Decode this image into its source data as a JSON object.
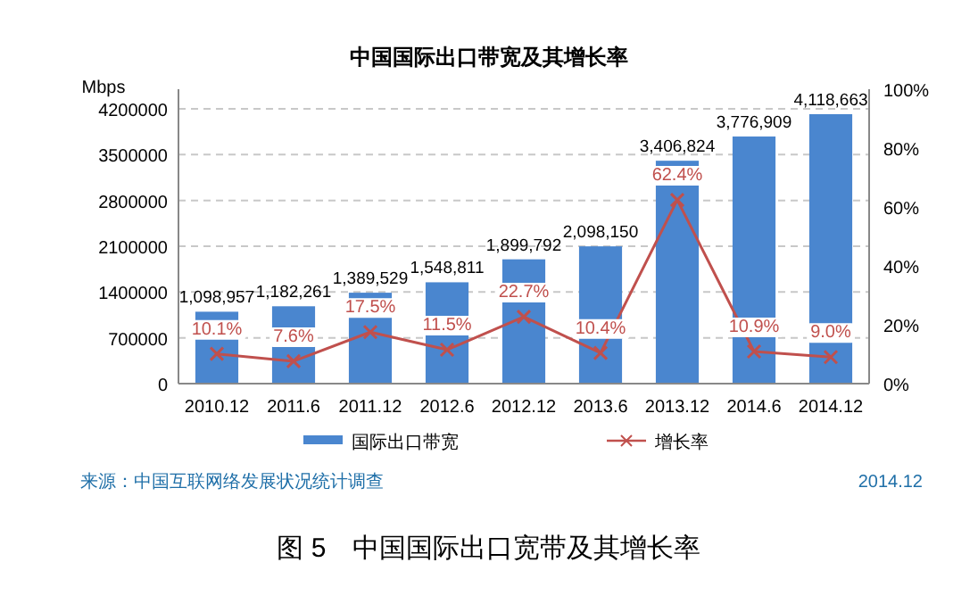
{
  "chart_data": {
    "type": "bar",
    "title": "中国国际出口带宽及其增长率",
    "ylabel": "Mbps",
    "categories": [
      "2010.12",
      "2011.6",
      "2011.12",
      "2012.6",
      "2012.12",
      "2013.6",
      "2013.12",
      "2014.6",
      "2014.12"
    ],
    "series": [
      {
        "name": "国际出口带宽",
        "type": "bar",
        "color": "#4a86cf",
        "values": [
          1098957,
          1182261,
          1389529,
          1548811,
          1899792,
          2098150,
          3406824,
          3776909,
          4118663
        ],
        "value_labels": [
          "1,098,957",
          "1,182,261",
          "1,389,529",
          "1,548,811",
          "1,899,792",
          "2,098,150",
          "3,406,824",
          "3,776,909",
          "4,118,663"
        ]
      },
      {
        "name": "增长率",
        "type": "line",
        "axis": "y2",
        "color": "#c0504d",
        "marker": "cross",
        "values": [
          10.1,
          7.6,
          17.5,
          11.5,
          22.7,
          10.4,
          62.4,
          10.9,
          9.0
        ],
        "value_labels": [
          "10.1%",
          "7.6%",
          "17.5%",
          "11.5%",
          "22.7%",
          "10.4%",
          "62.4%",
          "10.9%",
          "9.0%"
        ]
      }
    ],
    "ylim": [
      0,
      4500000
    ],
    "yticks": [
      0,
      700000,
      1400000,
      2100000,
      2800000,
      3500000,
      4200000
    ],
    "y2lim": [
      0,
      100
    ],
    "y2ticks": [
      {
        "value": 0,
        "label": "0%"
      },
      {
        "value": 20,
        "label": "20%"
      },
      {
        "value": 40,
        "label": "40%"
      },
      {
        "value": 60,
        "label": "60%"
      },
      {
        "value": 80,
        "label": "80%"
      },
      {
        "value": 100,
        "label": "100%"
      }
    ],
    "grid": "y",
    "legend": "bottom",
    "annotations": [
      "来源：中国互联网络发展状况统计调查",
      "2014.12",
      "图 5　中国国际出口宽带及其增长率"
    ]
  }
}
